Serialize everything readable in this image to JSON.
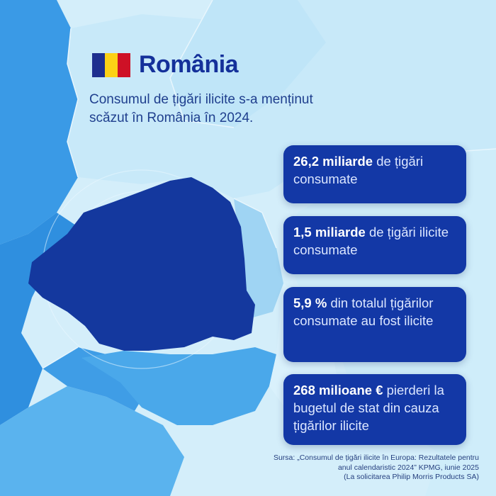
{
  "header": {
    "title": "România",
    "flag_colors": [
      "#1e2f8f",
      "#fcd116",
      "#ce1126"
    ]
  },
  "subtitle": "Consumul de țigări ilicite s-a menținut scăzut în România în 2024.",
  "stats": [
    {
      "value": "26,2 miliarde",
      "text": " de țigări consumate"
    },
    {
      "value": "1,5 miliarde",
      "text": " de țigări ilicite consumate"
    },
    {
      "value": "5,9 %",
      "text": " din totalul țigărilor consumate au fost ilicite"
    },
    {
      "value": "268 milioane €",
      "text": " pierderi la bugetul de stat din cauza țigărilor ilicite"
    }
  ],
  "source": {
    "line1": "Sursa: „Consumul de țigări ilicite în Europa: Rezultatele pentru",
    "line2": "anul calendaristic 2024” KPMG, iunie 2025",
    "line3": "(La solicitarea Philip Morris Products SA)"
  },
  "colors": {
    "romania": "#14389e",
    "neighbor_dark": "#2e8fe0",
    "neighbor_mid": "#5cb4ee",
    "light": "#c5e8f8",
    "card": "#1338a6",
    "title": "#14309a"
  }
}
